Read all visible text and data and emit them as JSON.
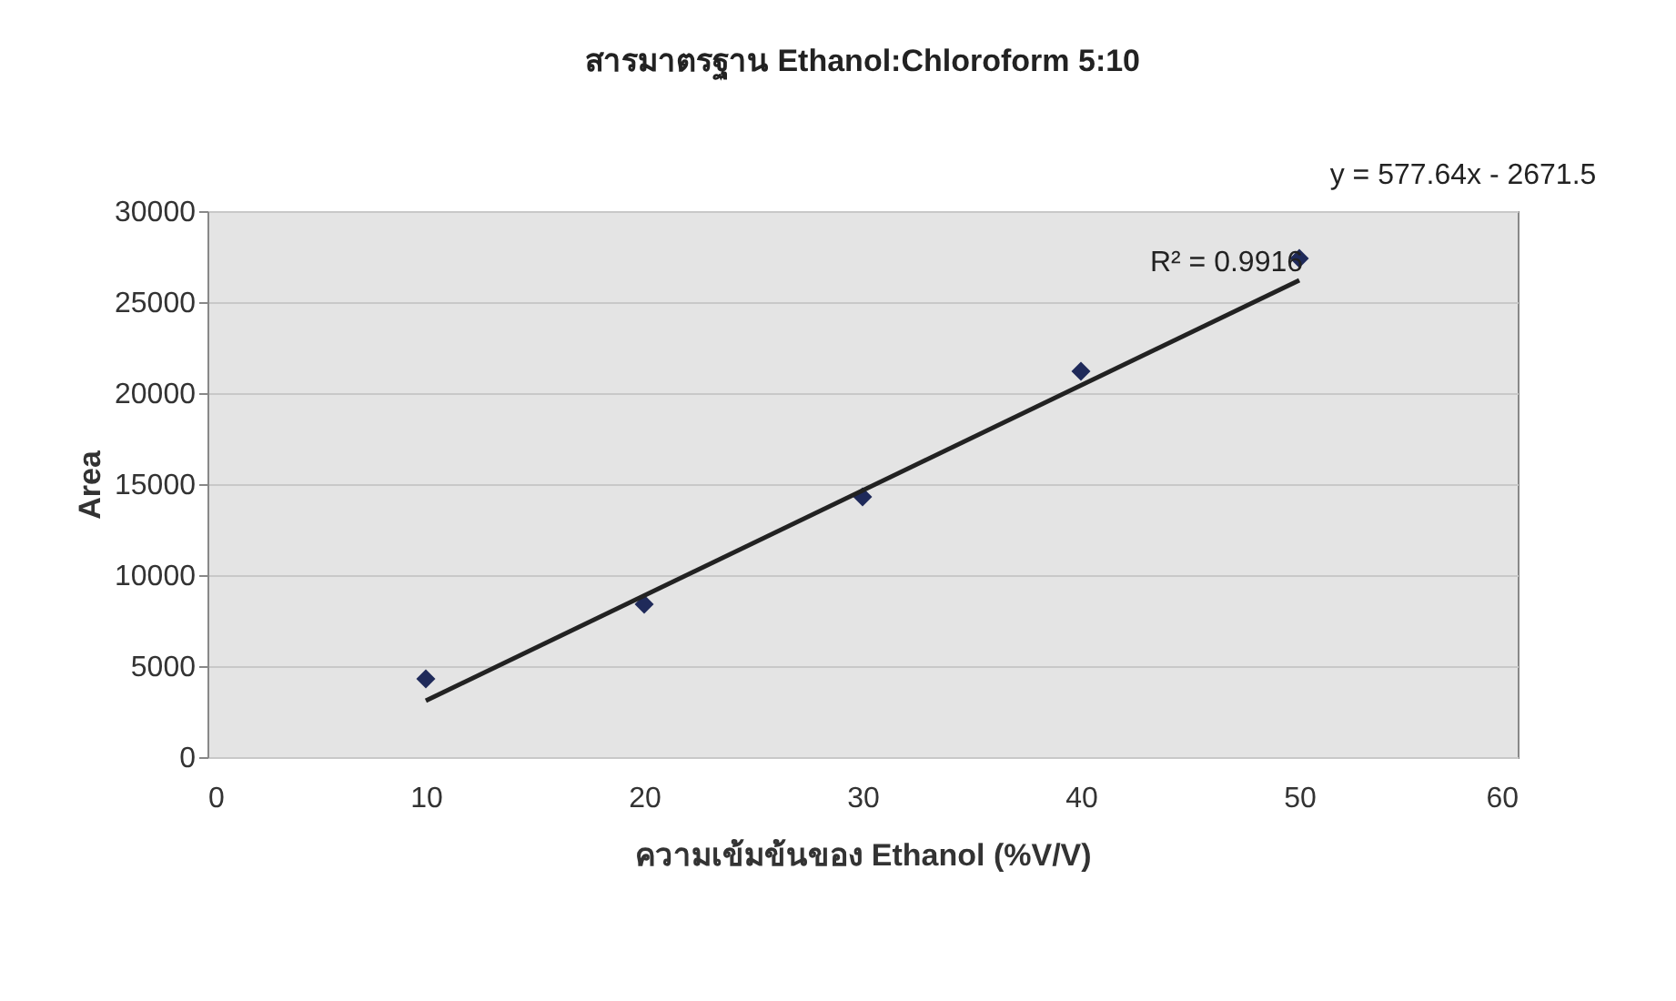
{
  "chart_data": {
    "type": "scatter",
    "title": "สารมาตรฐาน Ethanol:Chloroform 5:10",
    "xlabel": "ความเข้มข้นของ Ethanol (%V/V)",
    "ylabel": "Area",
    "x": [
      10,
      20,
      30,
      40,
      50
    ],
    "series": [
      {
        "color": "#1f2a5a",
        "values": [
          4300,
          8400,
          14300,
          21200,
          27400
        ],
        "marker": "diamond"
      },
      {
        "type": "line",
        "color": "#222222",
        "x": [
          10,
          50
        ],
        "values": [
          3100,
          26200
        ]
      }
    ],
    "xlim": [
      0,
      60
    ],
    "xticks": [
      0,
      10,
      20,
      30,
      40,
      50,
      60
    ],
    "ylim": [
      0,
      30000
    ],
    "yticks": [
      0,
      5000,
      10000,
      15000,
      20000,
      25000,
      30000
    ],
    "grid": "y",
    "annotations": [
      "y = 577.64x - 2671.5",
      "R² = 0.9916"
    ]
  }
}
